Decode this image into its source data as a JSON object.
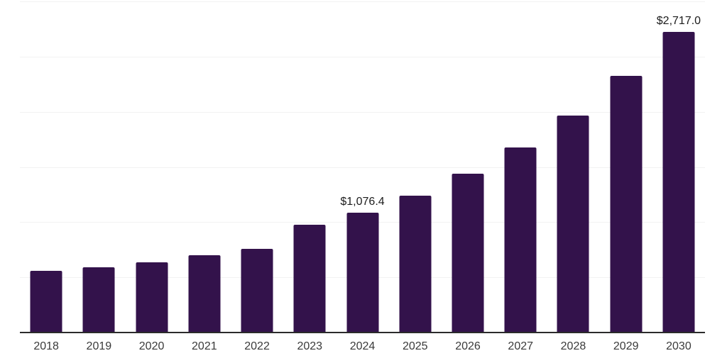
{
  "chart_data": {
    "type": "bar",
    "title": "",
    "xlabel": "",
    "ylabel": "",
    "categories": [
      "2018",
      "2019",
      "2020",
      "2021",
      "2022",
      "2023",
      "2024",
      "2025",
      "2026",
      "2027",
      "2028",
      "2029",
      "2030"
    ],
    "values": [
      550,
      585,
      630,
      694,
      752,
      972,
      1076.4,
      1233,
      1432,
      1670,
      1959,
      2319,
      2717
    ],
    "data_labels": [
      null,
      null,
      null,
      null,
      null,
      null,
      "$1,076.4",
      null,
      null,
      null,
      null,
      null,
      "$2,717.0"
    ],
    "ylim": [
      0,
      3000
    ],
    "gridline_step": 500,
    "grid": "horizontal",
    "legend": "none",
    "y_axis_tick_labels_visible": false
  },
  "colors": {
    "bar": "#33124b",
    "gridline": "#f2f2f2",
    "axis_line": "#2b2b2b",
    "tick_label": "#3a3a3a",
    "data_label": "#1c1c1c",
    "background": "#ffffff"
  }
}
